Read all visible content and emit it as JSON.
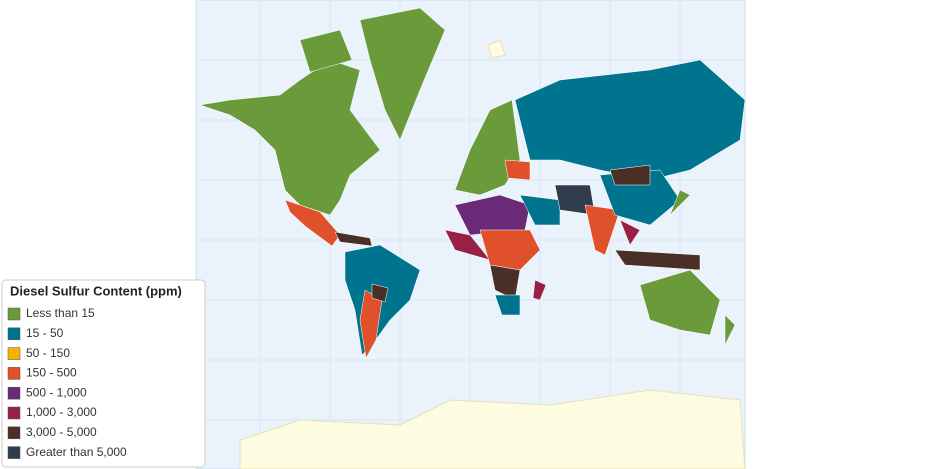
{
  "legend": {
    "title": "Diesel Sulfur Content (ppm)",
    "items": [
      {
        "label": "Less than 15",
        "color": "#6a9a3a"
      },
      {
        "label": "15 - 50",
        "color": "#00738e"
      },
      {
        "label": "50 - 150",
        "color": "#f4b400"
      },
      {
        "label": "150 - 500",
        "color": "#e0502a"
      },
      {
        "label": "500 - 1,000",
        "color": "#6b2a78"
      },
      {
        "label": "1,000 - 3,000",
        "color": "#9a2146"
      },
      {
        "label": "3,000 - 5,000",
        "color": "#4a2f26"
      },
      {
        "label": "Greater than 5,000",
        "color": "#2f3d4c"
      }
    ]
  }
}
